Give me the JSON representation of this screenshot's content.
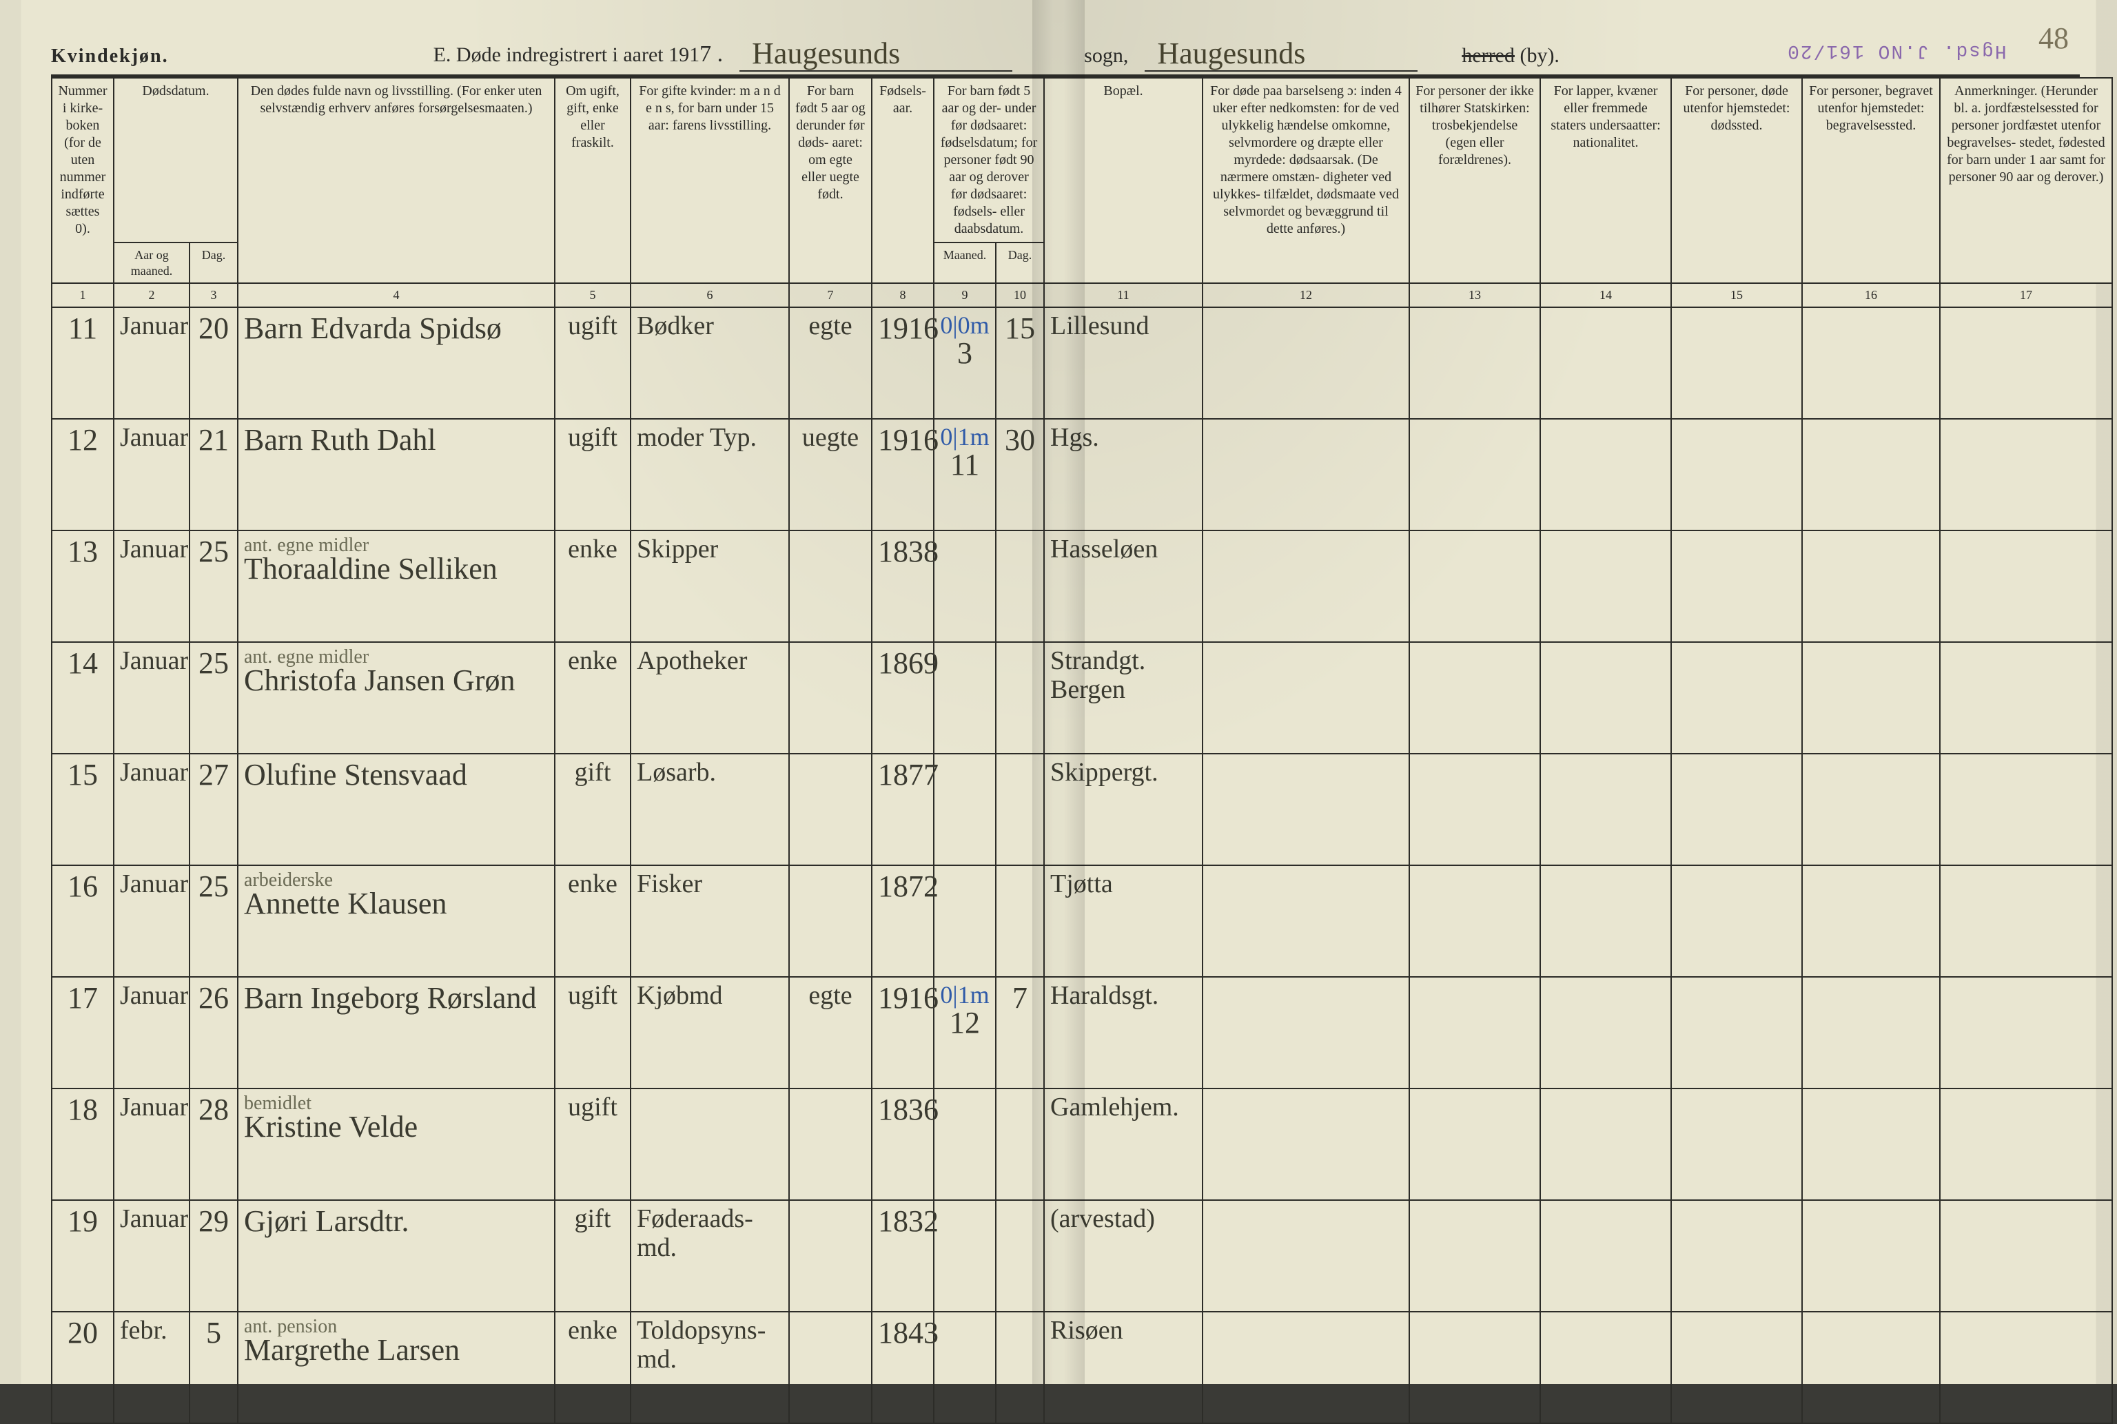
{
  "page": {
    "folio": "48",
    "stamp": "Hgsd. J.NO  161/20",
    "gender_heading": "Kvindekjøn.",
    "title_prefix": "E.  Døde indregistrert i aaret 191",
    "title_year_suffix": "7 .",
    "sogn_label": "sogn,",
    "sogn_value": "Haugesunds",
    "herred_label_strike": "herred",
    "herred_label_tail": " (by).",
    "herred_value": "Haugesunds"
  },
  "colors": {
    "paper": "#e9e6d1",
    "ink": "#2c2c28",
    "script": "#3a3a30",
    "blue_pencil": "#2f5aa8",
    "stamp": "#6b3fa0"
  },
  "columns": {
    "h1": "Nummer i kirke- boken (for de uten nummer indførte sættes 0).",
    "h2_3": "Dødsdatum.",
    "h2": "Aar og maaned.",
    "h3": "Dag.",
    "h4": "Den dødes fulde navn og livsstilling.\n(For enker uten selvstændig erhverv anføres forsørgelsesmaaten.)",
    "h5": "Om ugift, gift, enke eller fraskilt.",
    "h6": "For gifte kvinder: m a n d e n s,\nfor barn under 15 aar: farens livsstilling.",
    "h7": "For barn født 5 aar og derunder før døds- aaret: om egte eller uegte født.",
    "h8": "Fødsels- aar.",
    "h9_10": "For barn født 5 aar og der- under før dødsaaret: fødselsdatum; for personer født 90 aar og derover før dødsaaret: fødsels- eller daabsdatum.",
    "h9": "Maaned.",
    "h10": "Dag.",
    "h11": "Bopæl.",
    "h12": "For døde paa barselseng ɔ: inden 4 uker efter nedkomsten: for de ved ulykkelig hændelse omkomne, selvmordere og dræpte eller myrdede: dødsaarsak.\n(De nærmere omstæn- digheter ved ulykkes- tilfældet, dødsmaate ved selvmordet og bevæggrund til dette anføres.)",
    "h13": "For personer der ikke tilhører Statskirken: trosbekjendelse (egen eller forældrenes).",
    "h14": "For lapper, kvæner eller fremmede staters undersaatter: nationalitet.",
    "h15": "For personer, døde utenfor hjemstedet: dødssted.",
    "h16": "For personer, begravet utenfor hjemstedet: begravelsessted.",
    "h17": "Anmerkninger.\n(Herunder bl. a. jordfæstelsessted for personer jordfæstet utenfor begravelses- stedet, fødested for barn under 1 aar samt for personer 90 aar og derover.)"
  },
  "colnums": [
    "1",
    "2",
    "3",
    "4",
    "5",
    "6",
    "7",
    "8",
    "9",
    "10",
    "11",
    "12",
    "13",
    "14",
    "15",
    "16",
    "17"
  ],
  "rows": [
    {
      "n": "11",
      "mon": "Januar",
      "day": "20",
      "name": "Barn Edvarda Spidsø",
      "note": "",
      "civil": "ugift",
      "col6": "Bødker",
      "col7": "egte",
      "year": "1916",
      "m": "3",
      "d": "15",
      "blue": "0|0m",
      "res": "Lillesund"
    },
    {
      "n": "12",
      "mon": "Januar",
      "day": "21",
      "name": "Barn Ruth Dahl",
      "note": "",
      "civil": "ugift",
      "col6": "moder Typ.",
      "col7": "uegte",
      "year": "1916",
      "m": "11",
      "d": "30",
      "blue": "0|1m",
      "res": "Hgs."
    },
    {
      "n": "13",
      "mon": "Januar",
      "day": "25",
      "name": "Thoraaldine Selliken",
      "note": "ant. egne midler",
      "civil": "enke",
      "col6": "Skipper",
      "col7": "",
      "year": "1838",
      "m": "",
      "d": "",
      "blue": "",
      "res": "Hasseløen"
    },
    {
      "n": "14",
      "mon": "Januar",
      "day": "25",
      "name": "Christofa Jansen Grøn",
      "note": "ant. egne midler",
      "civil": "enke",
      "col6": "Apotheker",
      "col7": "",
      "year": "1869",
      "m": "",
      "d": "",
      "blue": "",
      "res": "Strandgt. Bergen"
    },
    {
      "n": "15",
      "mon": "Januar",
      "day": "27",
      "name": "Olufine Stensvaad",
      "note": "",
      "civil": "gift",
      "col6": "Løsarb.",
      "col7": "",
      "year": "1877",
      "m": "",
      "d": "",
      "blue": "",
      "res": "Skippergt."
    },
    {
      "n": "16",
      "mon": "Januar",
      "day": "25",
      "name": "Annette Klausen",
      "note": "arbeiderske",
      "civil": "enke",
      "col6": "Fisker",
      "col7": "",
      "year": "1872",
      "m": "",
      "d": "",
      "blue": "",
      "res": "Tjøtta"
    },
    {
      "n": "17",
      "mon": "Januar",
      "day": "26",
      "name": "Barn Ingeborg Rørsland",
      "note": "",
      "civil": "ugift",
      "col6": "Kjøbmd",
      "col7": "egte",
      "year": "1916",
      "m": "12",
      "d": "7",
      "blue": "0|1m",
      "res": "Haraldsgt."
    },
    {
      "n": "18",
      "mon": "Januar",
      "day": "28",
      "name": "Kristine Velde",
      "note": "bemidlet",
      "civil": "ugift",
      "col6": "",
      "col7": "",
      "year": "1836",
      "m": "",
      "d": "",
      "blue": "",
      "res": "Gamlehjem."
    },
    {
      "n": "19",
      "mon": "Januar",
      "day": "29",
      "name": "Gjøri Larsdtr.",
      "note": "",
      "civil": "gift",
      "col6": "Føderaads-md.",
      "col7": "",
      "year": "1832",
      "m": "",
      "d": "",
      "blue": "",
      "res": "(arvestad)"
    },
    {
      "n": "20",
      "mon": "febr.",
      "day": "5",
      "name": "Margrethe Larsen",
      "note": "ant. pension",
      "civil": "enke",
      "col6": "Toldopsyns-md.",
      "col7": "",
      "year": "1843",
      "m": "",
      "d": "",
      "blue": "",
      "res": "Risøen"
    }
  ]
}
